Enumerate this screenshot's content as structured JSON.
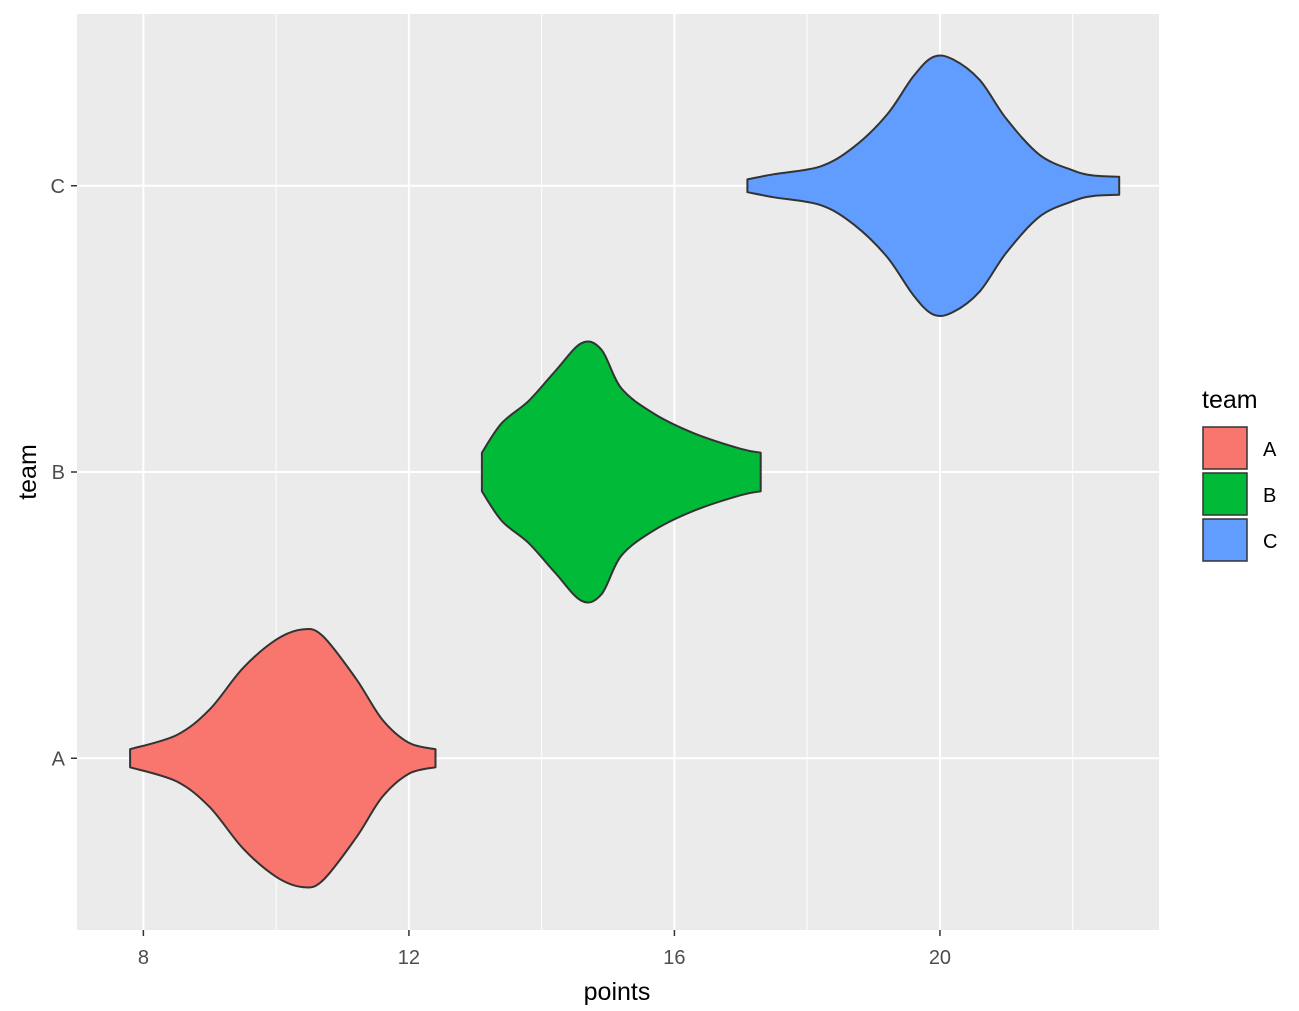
{
  "chart_data": {
    "type": "violin",
    "orientation": "horizontal",
    "xlabel": "points",
    "ylabel": "team",
    "xlim": [
      7.0,
      23.3
    ],
    "x_ticks": [
      8,
      12,
      16,
      20
    ],
    "x_tick_labels": [
      "8",
      "12",
      "16",
      "20"
    ],
    "categories": [
      "A",
      "B",
      "C"
    ],
    "grid": true,
    "legend": {
      "title": "team",
      "position": "right",
      "entries": [
        "A",
        "B",
        "C"
      ]
    },
    "series": [
      {
        "name": "A",
        "color": "#F8766D",
        "density_profile": [
          [
            7.8,
            0.07
          ],
          [
            8.5,
            0.18
          ],
          [
            9.0,
            0.38
          ],
          [
            9.5,
            0.7
          ],
          [
            10.0,
            0.92
          ],
          [
            10.4,
            1.0
          ],
          [
            10.7,
            0.95
          ],
          [
            11.2,
            0.62
          ],
          [
            11.6,
            0.3
          ],
          [
            12.0,
            0.12
          ],
          [
            12.4,
            0.07
          ]
        ]
      },
      {
        "name": "B",
        "color": "#00BA38",
        "density_profile": [
          [
            13.1,
            0.15
          ],
          [
            13.4,
            0.38
          ],
          [
            13.8,
            0.55
          ],
          [
            14.2,
            0.78
          ],
          [
            14.6,
            1.0
          ],
          [
            14.9,
            0.95
          ],
          [
            15.2,
            0.65
          ],
          [
            15.7,
            0.45
          ],
          [
            16.3,
            0.3
          ],
          [
            17.0,
            0.18
          ],
          [
            17.3,
            0.15
          ]
        ]
      },
      {
        "name": "C",
        "color": "#619CFF",
        "density_profile": [
          [
            17.1,
            0.05
          ],
          [
            17.5,
            0.09
          ],
          [
            18.2,
            0.15
          ],
          [
            18.7,
            0.3
          ],
          [
            19.2,
            0.55
          ],
          [
            19.6,
            0.85
          ],
          [
            19.9,
            1.0
          ],
          [
            20.2,
            0.98
          ],
          [
            20.6,
            0.82
          ],
          [
            21.0,
            0.52
          ],
          [
            21.5,
            0.24
          ],
          [
            22.0,
            0.12
          ],
          [
            22.3,
            0.08
          ],
          [
            22.7,
            0.07
          ]
        ]
      }
    ]
  }
}
